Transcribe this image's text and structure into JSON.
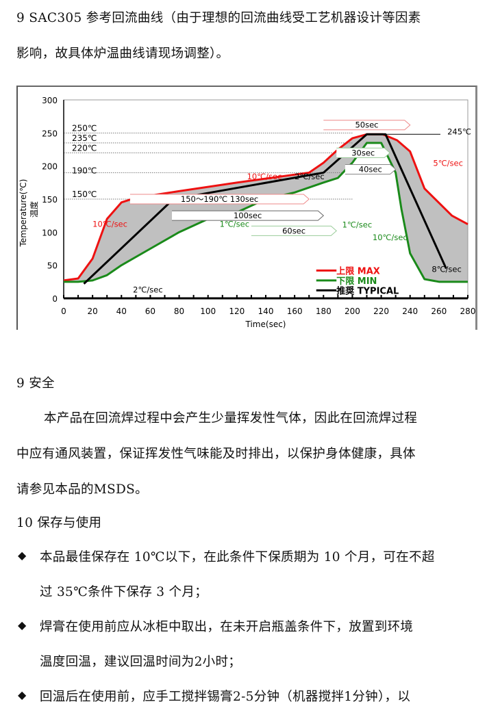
{
  "heading1_line1": "9  SAC305 参考回流曲线（由于理想的回流曲线受工艺机器设计等因素",
  "heading1_line2": "影响，故具体炉温曲线请现场调整）。",
  "chart_data": {
    "type": "line",
    "xlabel": "Time(sec)",
    "ylabel": "Temperature(℃)",
    "ylabel2": "温度",
    "xlim": [
      0,
      280
    ],
    "ylim": [
      0,
      300
    ],
    "xticks": [
      0,
      20,
      40,
      60,
      80,
      100,
      120,
      140,
      160,
      180,
      200,
      220,
      240,
      260,
      280
    ],
    "yticks": [
      0,
      50,
      100,
      150,
      200,
      250,
      300
    ],
    "ref_lines": [
      {
        "value": 250,
        "label": "250℃"
      },
      {
        "value": 235,
        "label": "235℃"
      },
      {
        "value": 220,
        "label": "220℃"
      },
      {
        "value": 190,
        "label": "190℃"
      },
      {
        "value": 150,
        "label": "150℃"
      }
    ],
    "series": [
      {
        "name": "上限 MAX",
        "color": "#ee1111",
        "points": [
          [
            0,
            27
          ],
          [
            10,
            30
          ],
          [
            20,
            60
          ],
          [
            25,
            90
          ],
          [
            30,
            120
          ],
          [
            40,
            145
          ],
          [
            50,
            152
          ],
          [
            80,
            162
          ],
          [
            120,
            175
          ],
          [
            170,
            190
          ],
          [
            180,
            205
          ],
          [
            190,
            225
          ],
          [
            200,
            242
          ],
          [
            210,
            248
          ],
          [
            221,
            248
          ],
          [
            231,
            239
          ],
          [
            240,
            222
          ],
          [
            250,
            166
          ],
          [
            269,
            125
          ],
          [
            280,
            112
          ],
          [
            280,
            0
          ]
        ]
      },
      {
        "name": "下限 MIN",
        "color": "#1a8a1a",
        "points": [
          [
            0,
            0
          ],
          [
            0,
            25
          ],
          [
            10,
            25
          ],
          [
            20,
            27
          ],
          [
            30,
            35
          ],
          [
            40,
            50
          ],
          [
            60,
            75
          ],
          [
            80,
            100
          ],
          [
            100,
            120
          ],
          [
            120,
            130
          ],
          [
            140,
            150
          ],
          [
            160,
            160
          ],
          [
            180,
            175
          ],
          [
            190,
            182
          ],
          [
            200,
            205
          ],
          [
            210,
            235
          ],
          [
            220,
            235
          ],
          [
            230,
            190
          ],
          [
            234,
            135
          ],
          [
            240,
            68
          ],
          [
            250,
            29
          ],
          [
            260,
            25
          ],
          [
            280,
            25
          ],
          [
            280,
            0
          ]
        ]
      },
      {
        "name": "推奨 TYPICAL",
        "color": "#000000",
        "points": [
          [
            14,
            22
          ],
          [
            76,
            150
          ],
          [
            180,
            190
          ],
          [
            210,
            248
          ],
          [
            223,
            248
          ],
          [
            265,
            45
          ]
        ]
      }
    ],
    "annotations": [
      "10℃/sec",
      "2℃/sec",
      "10℃/sec",
      "2℃/sec",
      "1℃/sec",
      "1℃/sec",
      "10℃/sec",
      "5℃/sec",
      "8℃/sec",
      "245℃",
      "50sec",
      "30sec",
      "40sec",
      "60sec",
      "100sec",
      "150～190℃  130sec"
    ],
    "legend_placement": "bottom-right",
    "fill_color": "#c0c0c0"
  },
  "section9_title": "9 安全",
  "section9_lines": [
    "本产品在回流焊过程中会产生少量挥发性气体，因此在回流焊过程",
    "中应有通风装置，保证挥发性气味能及时排出，以保护身体健康，具体",
    "请参见本品的MSDS。"
  ],
  "section10_title": "10 保存与使用",
  "bullet_icon": "diamond-bullet-icon",
  "bullets": [
    [
      "本品最佳保存在 10℃以下，在此条件下保质期为 10 个月，可在不超",
      "过 35℃条件下保存 3 个月；"
    ],
    [
      "焊膏在使用前应从冰柜中取出，在未开启瓶盖条件下，放置到环境",
      "温度回温，建议回温时间为2小时；"
    ],
    [
      "回温后在使用前，应手工搅拌锡膏2-5分钟（机器搅拌1分钟），以"
    ]
  ]
}
